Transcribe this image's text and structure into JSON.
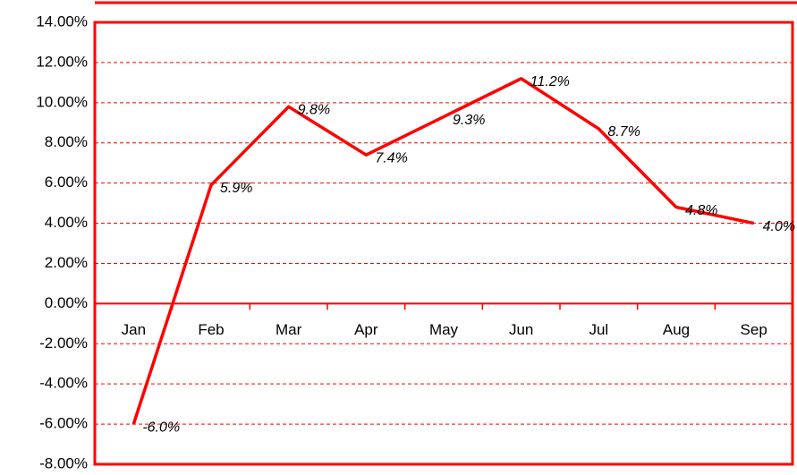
{
  "chart_data": {
    "type": "line",
    "categories": [
      "Jan",
      "Feb",
      "Mar",
      "Apr",
      "May",
      "Jun",
      "Jul",
      "Aug",
      "Sep"
    ],
    "series": [
      {
        "color": "#ff0000",
        "values": [
          -6.0,
          5.9,
          9.8,
          7.4,
          9.3,
          11.2,
          8.7,
          4.8,
          4.0
        ],
        "value_labels": [
          "-6.0%",
          "5.9%",
          "9.8%",
          "7.4%",
          "9.3%",
          "11.2%",
          "8.7%",
          "4.8%",
          "4.0%"
        ]
      }
    ],
    "ylim": [
      -8,
      14
    ],
    "yticks": [
      {
        "value": -8,
        "label": "-8.00%"
      },
      {
        "value": -6,
        "label": "-6.00%"
      },
      {
        "value": -4,
        "label": "-4.00%"
      },
      {
        "value": -2,
        "label": "-2.00%"
      },
      {
        "value": 0,
        "label": "0.00%"
      },
      {
        "value": 2,
        "label": "2.00%"
      },
      {
        "value": 4,
        "label": "4.00%"
      },
      {
        "value": 6,
        "label": "6.00%"
      },
      {
        "value": 8,
        "label": "8.00%"
      },
      {
        "value": 10,
        "label": "10.00%"
      },
      {
        "value": 12,
        "label": "12.00%"
      },
      {
        "value": 14,
        "label": "14.00%"
      }
    ],
    "grid": true
  }
}
